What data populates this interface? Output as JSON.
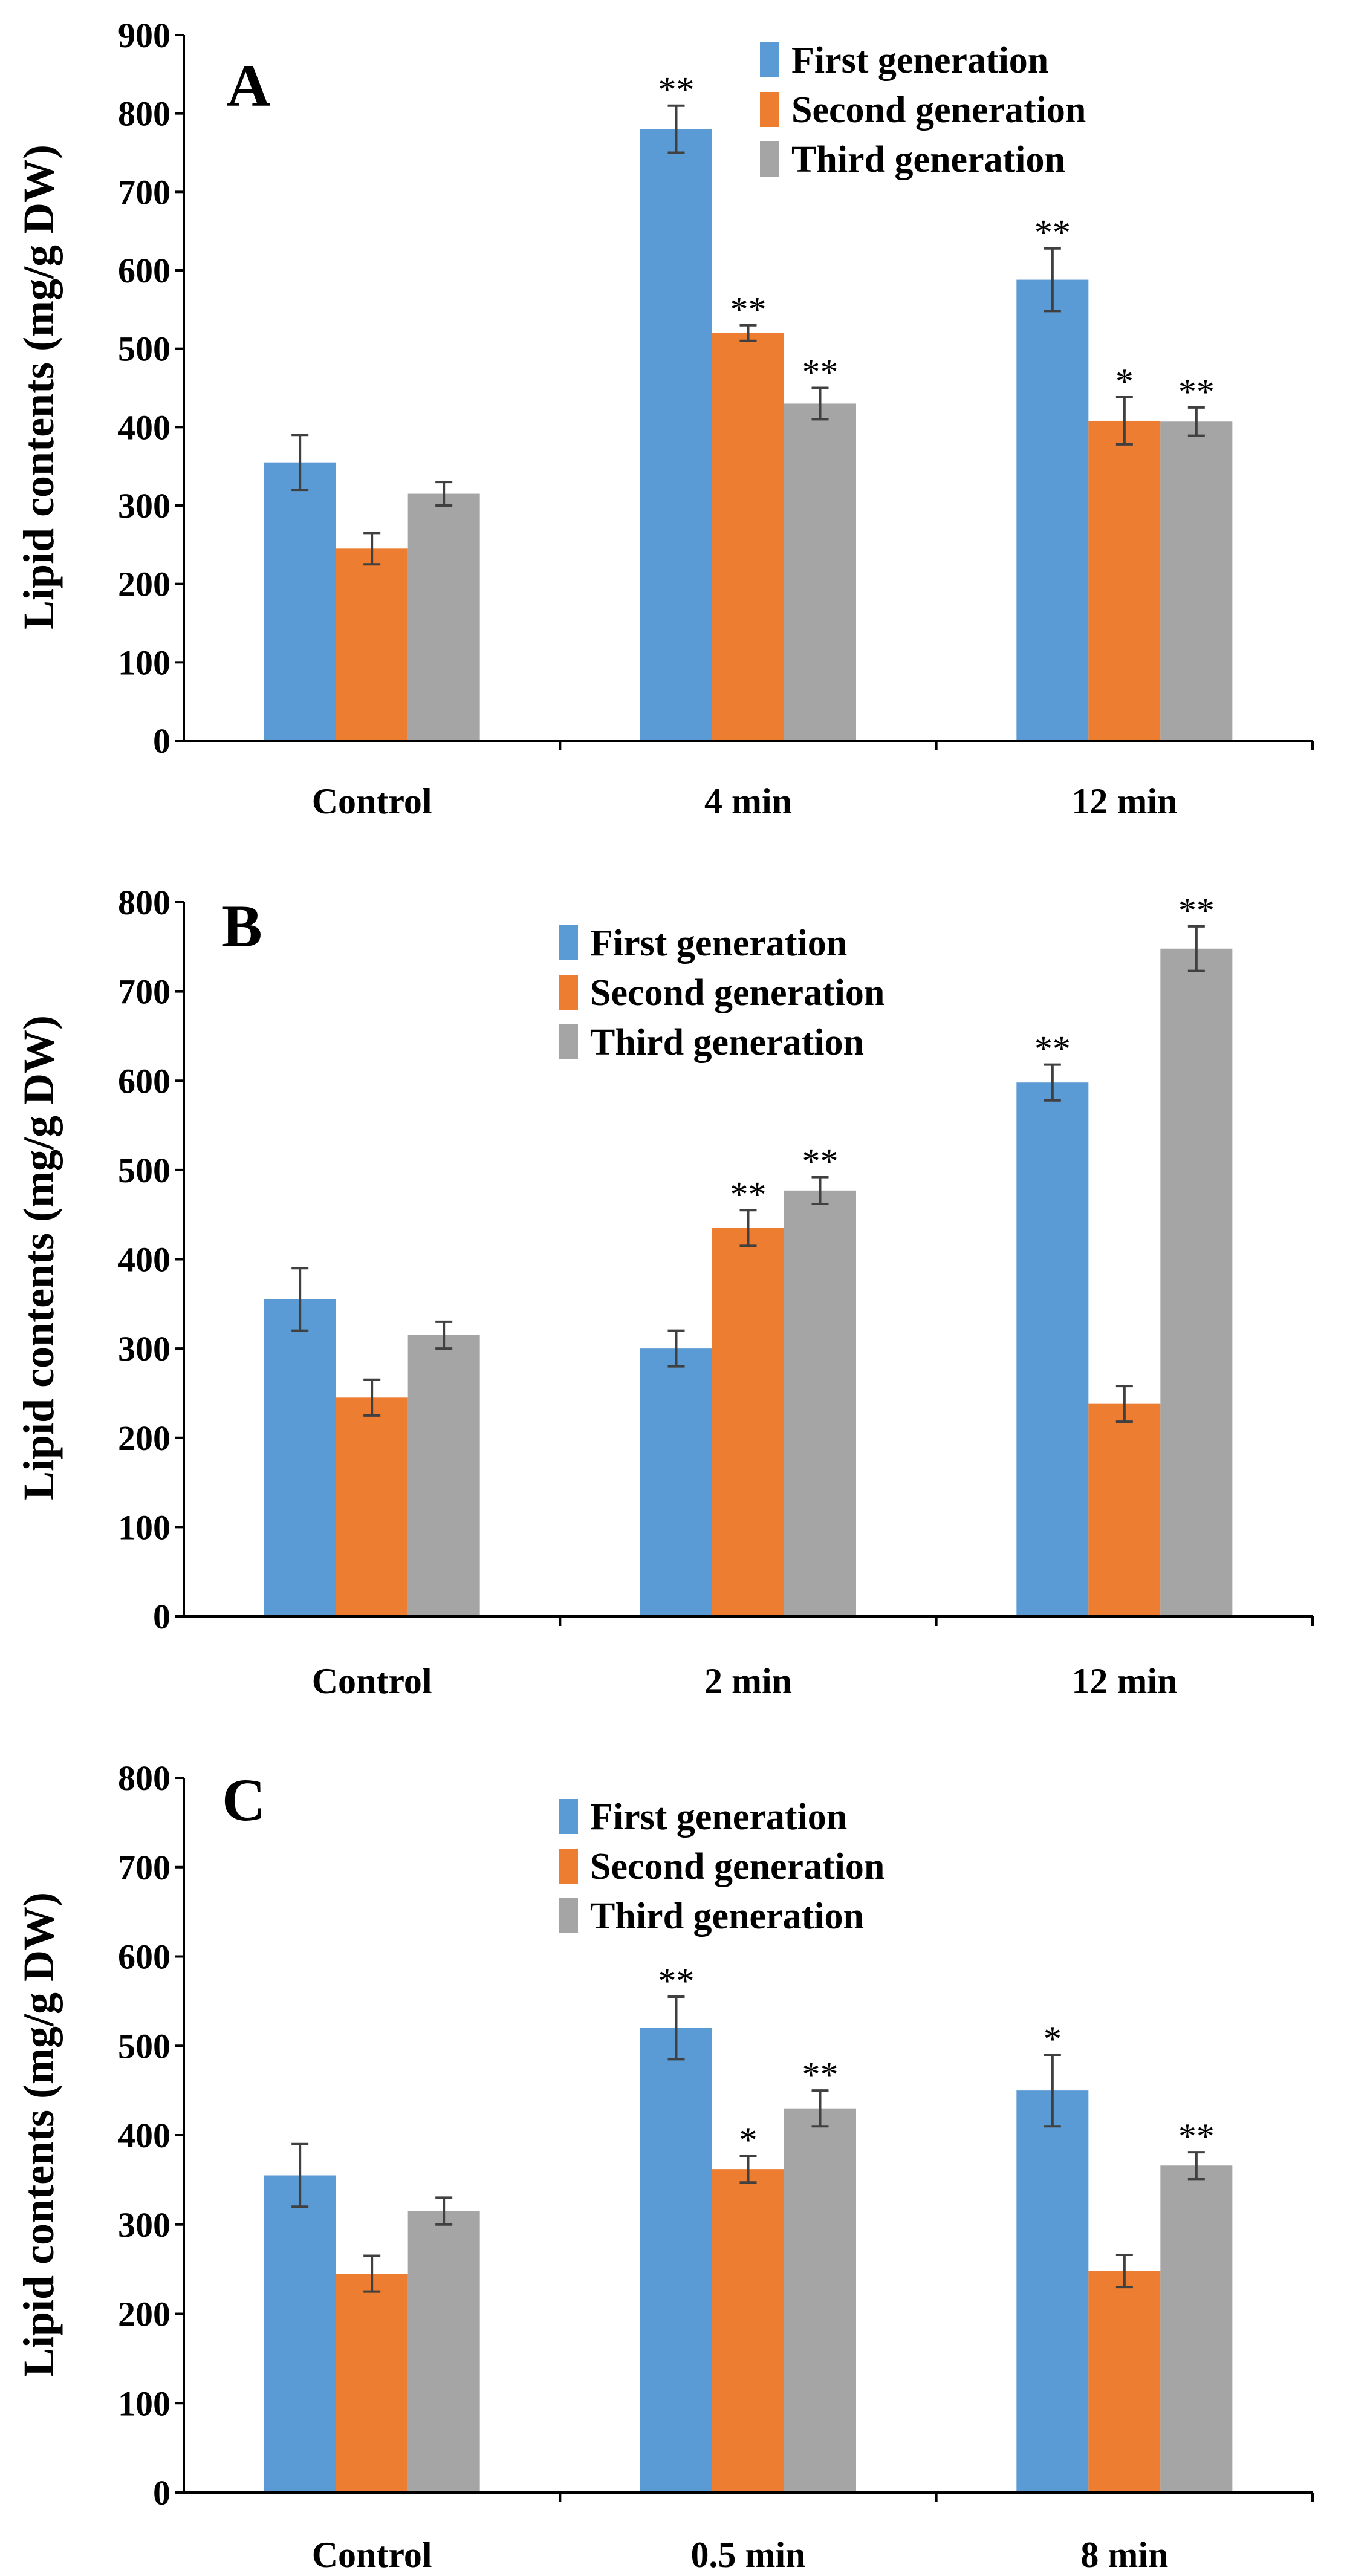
{
  "colors": {
    "first": "#5B9BD5",
    "second": "#ED7D31",
    "third": "#A5A5A5",
    "error": "#404040"
  },
  "chart_data": [
    {
      "type": "bar",
      "panel_label": "A",
      "ylabel": "Lipid contents (mg/g DW)",
      "xlabel": "",
      "ylim": [
        0,
        900
      ],
      "yticks": [
        0,
        100,
        200,
        300,
        400,
        500,
        600,
        700,
        800,
        900
      ],
      "categories": [
        "Control",
        "4 min",
        "12 min"
      ],
      "legend_position": "top-right",
      "series": [
        {
          "name": "First generation",
          "values": [
            355,
            780,
            588
          ],
          "errors": [
            35,
            30,
            40
          ],
          "sig": [
            "",
            "**",
            "**"
          ]
        },
        {
          "name": "Second generation",
          "values": [
            245,
            520,
            408
          ],
          "errors": [
            20,
            10,
            30
          ],
          "sig": [
            "",
            "**",
            "*"
          ]
        },
        {
          "name": "Third generation",
          "values": [
            315,
            430,
            407
          ],
          "errors": [
            15,
            20,
            18
          ],
          "sig": [
            "",
            "**",
            "**"
          ]
        }
      ]
    },
    {
      "type": "bar",
      "panel_label": "B",
      "ylabel": "Lipid contents (mg/g DW)",
      "xlabel": "",
      "ylim": [
        0,
        800
      ],
      "yticks": [
        0,
        100,
        200,
        300,
        400,
        500,
        600,
        700,
        800
      ],
      "categories": [
        "Control",
        "2 min",
        "12 min"
      ],
      "legend_position": "top-center",
      "series": [
        {
          "name": "First generation",
          "values": [
            355,
            300,
            598
          ],
          "errors": [
            35,
            20,
            20
          ],
          "sig": [
            "",
            "",
            "**"
          ]
        },
        {
          "name": "Second generation",
          "values": [
            245,
            435,
            238
          ],
          "errors": [
            20,
            20,
            20
          ],
          "sig": [
            "",
            "**",
            ""
          ]
        },
        {
          "name": "Third generation",
          "values": [
            315,
            477,
            748
          ],
          "errors": [
            15,
            15,
            25
          ],
          "sig": [
            "",
            "**",
            "**"
          ]
        }
      ]
    },
    {
      "type": "bar",
      "panel_label": "C",
      "ylabel": "Lipid contents (mg/g DW)",
      "xlabel": "",
      "ylim": [
        0,
        800
      ],
      "yticks": [
        0,
        100,
        200,
        300,
        400,
        500,
        600,
        700,
        800
      ],
      "categories": [
        "Control",
        "0.5 min",
        "8 min"
      ],
      "legend_position": "top-center",
      "series": [
        {
          "name": "First generation",
          "values": [
            355,
            520,
            450
          ],
          "errors": [
            35,
            35,
            40
          ],
          "sig": [
            "",
            "**",
            "*"
          ]
        },
        {
          "name": "Second generation",
          "values": [
            245,
            362,
            248
          ],
          "errors": [
            20,
            15,
            18
          ],
          "sig": [
            "",
            "*",
            ""
          ]
        },
        {
          "name": "Third generation",
          "values": [
            315,
            430,
            366
          ],
          "errors": [
            15,
            20,
            15
          ],
          "sig": [
            "",
            "**",
            "**"
          ]
        }
      ]
    }
  ]
}
